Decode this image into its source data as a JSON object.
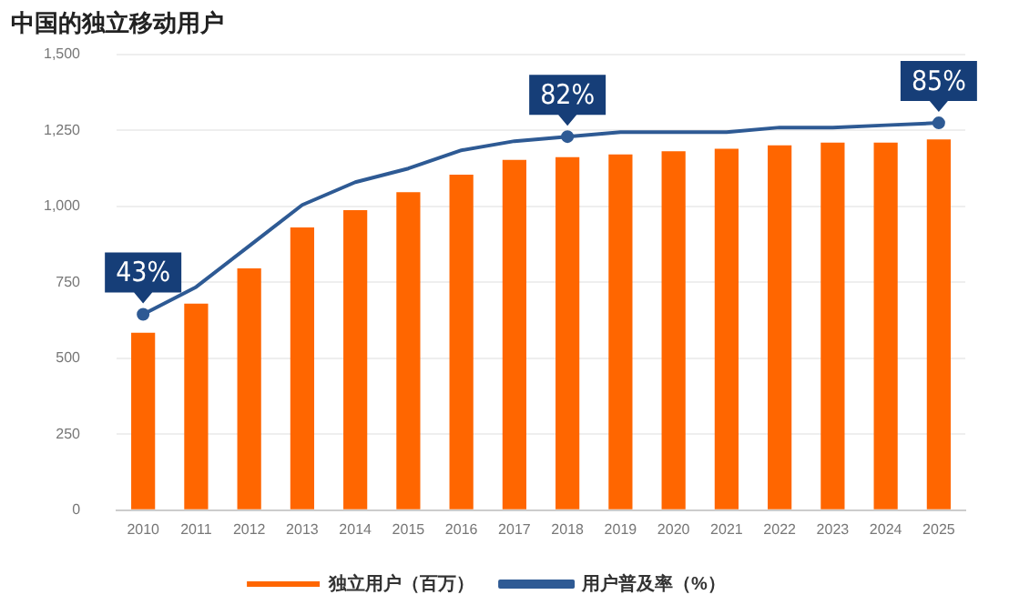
{
  "chart_data": {
    "type": "bar",
    "title": "中国的独立移动用户",
    "categories": [
      "2010",
      "2011",
      "2012",
      "2013",
      "2014",
      "2015",
      "2016",
      "2017",
      "2018",
      "2019",
      "2020",
      "2021",
      "2022",
      "2023",
      "2024",
      "2025"
    ],
    "series": [
      {
        "name": "独立用户（百万）",
        "color": "#ff6600",
        "values": [
          584,
          680,
          796,
          931,
          988,
          1047,
          1105,
          1153,
          1162,
          1171,
          1182,
          1190,
          1201,
          1210,
          1210,
          1221
        ]
      },
      {
        "name": "用户普及率（%）",
        "type": "line",
        "axis": "y2",
        "color": "#2e5a94",
        "values": [
          43,
          49,
          58,
          67,
          72,
          75,
          79,
          81,
          82,
          83,
          83,
          83,
          84,
          84,
          84.5,
          85
        ],
        "value_labels": [
          "43%",
          null,
          null,
          null,
          null,
          null,
          null,
          null,
          "82%",
          null,
          null,
          null,
          null,
          null,
          null,
          "85%"
        ]
      }
    ],
    "ylim": [
      0,
      1500
    ],
    "yticks": [
      0,
      {
        "value": 250,
        "label": "250"
      },
      {
        "value": 500,
        "label": "500"
      },
      {
        "value": 750,
        "label": "750"
      },
      {
        "value": 1000,
        "label": "1,000"
      },
      {
        "value": 1250,
        "label": "1,250"
      },
      {
        "value": 1500,
        "label": "1,500"
      }
    ],
    "y2lim": [
      0,
      100
    ],
    "grid": "y",
    "legend": "bottom"
  }
}
